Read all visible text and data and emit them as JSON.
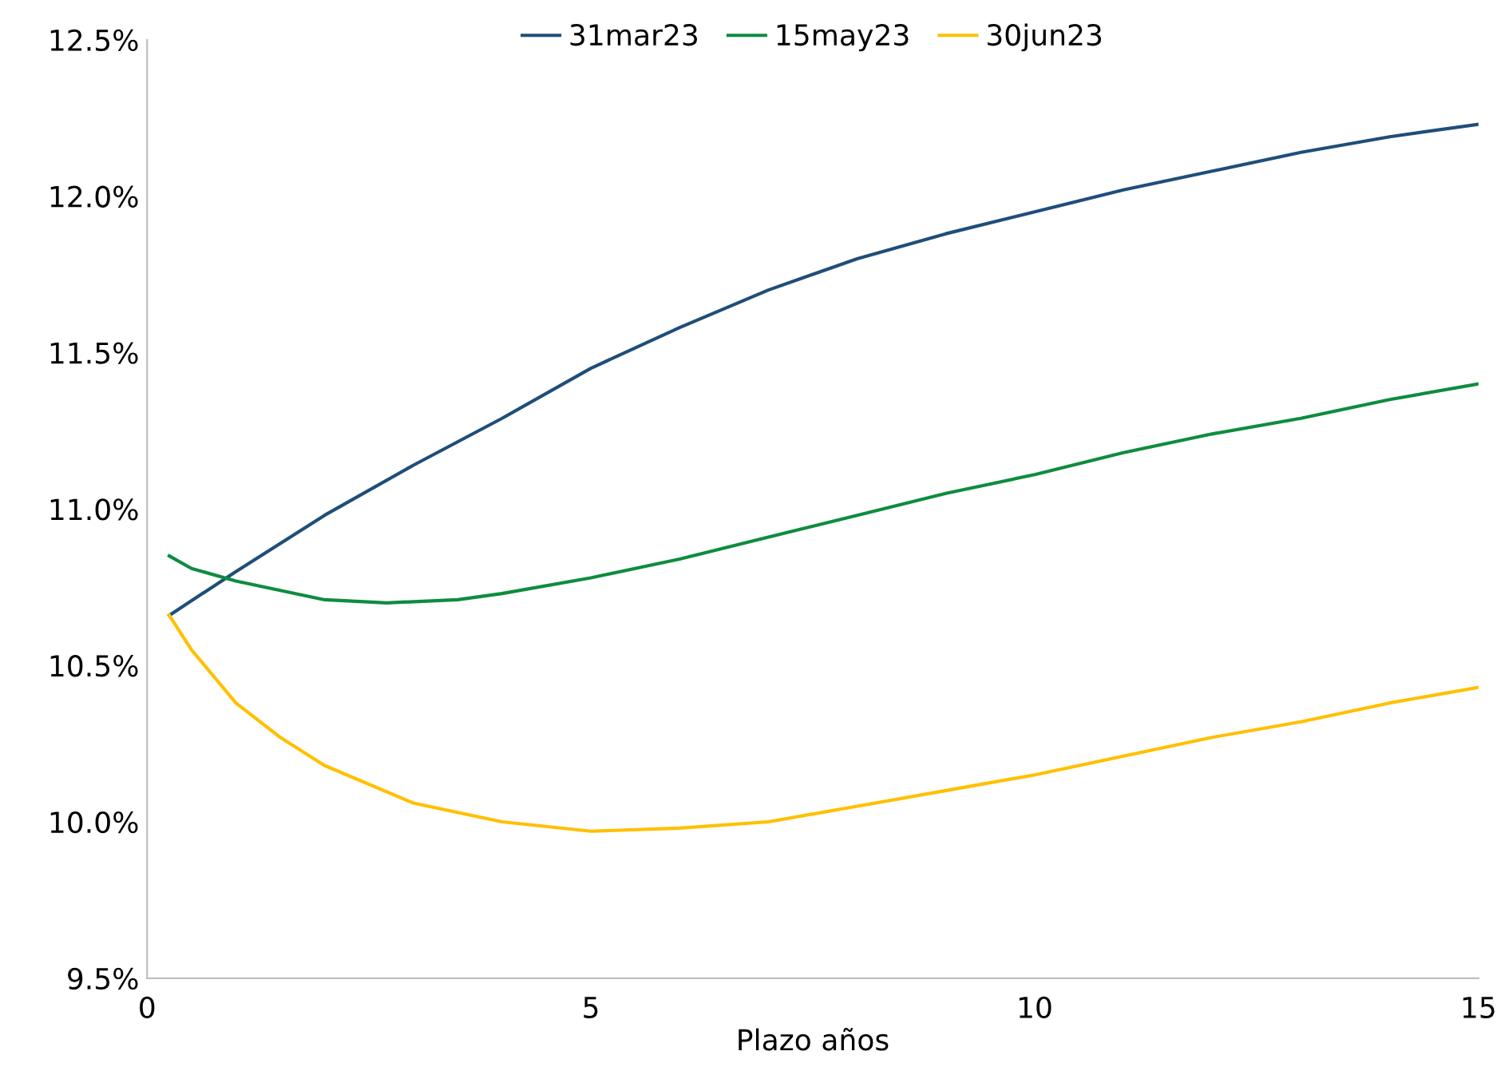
{
  "chart_data": {
    "type": "line",
    "xlabel": "Plazo años",
    "xlim": [
      0,
      15
    ],
    "xticks": [
      0,
      5,
      10,
      15
    ],
    "ylim": [
      9.5,
      12.5
    ],
    "yticks": [
      {
        "value": 9.5,
        "label": "9.5%"
      },
      {
        "value": 10.0,
        "label": "10.0%"
      },
      {
        "value": 10.5,
        "label": "10.5%"
      },
      {
        "value": 11.0,
        "label": "11.0%"
      },
      {
        "value": 11.5,
        "label": "11.5%"
      },
      {
        "value": 12.0,
        "label": "12.0%"
      },
      {
        "value": 12.5,
        "label": "12.5%"
      }
    ],
    "legend": "top",
    "grid": false,
    "marker": "none",
    "line_style": "solid",
    "series": [
      {
        "name": "31mar23",
        "color": "#1f4e79",
        "x": [
          0.25,
          1,
          2,
          3,
          4,
          5,
          6,
          7,
          8,
          9,
          10,
          11,
          12,
          13,
          14,
          15
        ],
        "values": [
          10.66,
          10.8,
          10.98,
          11.14,
          11.29,
          11.45,
          11.58,
          11.7,
          11.8,
          11.88,
          11.95,
          12.02,
          12.08,
          12.14,
          12.19,
          12.23
        ]
      },
      {
        "name": "15may23",
        "color": "#0e8c3f",
        "x": [
          0.25,
          0.5,
          1,
          1.5,
          2,
          2.7,
          3.5,
          4,
          5,
          6,
          7,
          8,
          9,
          10,
          11,
          12,
          13,
          14,
          15
        ],
        "values": [
          10.85,
          10.81,
          10.77,
          10.74,
          10.71,
          10.7,
          10.71,
          10.73,
          10.78,
          10.84,
          10.91,
          10.98,
          11.05,
          11.11,
          11.18,
          11.24,
          11.29,
          11.35,
          11.4
        ]
      },
      {
        "name": "30jun23",
        "color": "#ffc000",
        "x": [
          0.25,
          0.5,
          1,
          1.5,
          2,
          3,
          4,
          5,
          6,
          7,
          8,
          9,
          10,
          11,
          12,
          13,
          14,
          15
        ],
        "values": [
          10.66,
          10.55,
          10.38,
          10.27,
          10.18,
          10.06,
          10.0,
          9.97,
          9.98,
          10.0,
          10.05,
          10.1,
          10.15,
          10.21,
          10.27,
          10.32,
          10.38,
          10.43
        ]
      }
    ]
  }
}
